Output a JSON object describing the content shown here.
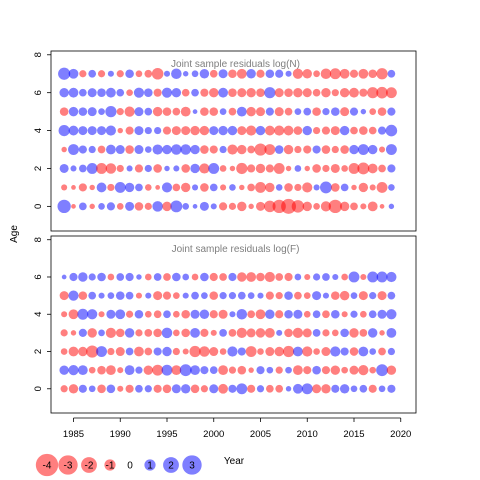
{
  "chart_data": {
    "type": "scatter",
    "subtype": "bubble-residuals",
    "shared_y_label": "Age",
    "shared_x_label": "Year",
    "x_ticks": [
      1985,
      1990,
      1995,
      2000,
      2005,
      2010,
      2015,
      2020
    ],
    "years_range": [
      1984,
      2019
    ],
    "colors": {
      "positive": "#0000FF",
      "negative": "#FF0000",
      "alpha": 0.5
    },
    "size_legend": {
      "values": [
        -4,
        -3,
        -2,
        -1,
        0,
        1,
        2,
        3
      ],
      "labels": [
        "-4",
        "-3",
        "-2",
        "-1",
        "0",
        "1",
        "2",
        "3"
      ]
    },
    "panels": [
      {
        "title": "Joint sample residuals log(N)",
        "ages": [
          0,
          1,
          2,
          3,
          4,
          5,
          6,
          7
        ],
        "y_ticks": [
          0,
          2,
          4,
          6,
          8
        ],
        "ylim": [
          -1.3,
          8.2
        ],
        "residuals": [
          [
            2.4,
            -0.3,
            0.8,
            -0.4,
            0.6,
            0.9,
            -0.6,
            1.1,
            -1.0,
            -0.7,
            1.5,
            -1.2,
            1.9,
            0.6,
            0.3,
            1.1,
            0.5,
            -0.9,
            -0.7,
            -1.2,
            -0.4,
            -1.1,
            -1.8,
            -2.4,
            -3.0,
            -2.1,
            -1.2,
            -0.6,
            -1.4,
            -2.4,
            -1.2,
            -0.8,
            -0.5,
            -1.3,
            -0.3,
            0.4
          ],
          [
            -0.5,
            -0.3,
            -0.9,
            -0.4,
            1.3,
            -0.7,
            1.6,
            1.2,
            0.8,
            -0.6,
            -0.3,
            1.4,
            -0.8,
            -1.2,
            0.5,
            -1.0,
            0.8,
            -0.5,
            0.6,
            -0.4,
            -0.8,
            -1.6,
            -1.2,
            0.6,
            -1.0,
            -0.7,
            -1.4,
            0.5,
            1.9,
            -1.0,
            0.8,
            -0.4,
            -1.2,
            -0.5,
            -1.6,
            0.6
          ],
          [
            1.1,
            0.5,
            0.8,
            1.6,
            -1.6,
            -1.5,
            -0.7,
            0.5,
            -0.9,
            0.7,
            -1.0,
            0.4,
            0.5,
            -1.0,
            1.2,
            -1.4,
            1.6,
            -0.6,
            -0.4,
            -1.7,
            -0.9,
            -1.2,
            -0.9,
            -1.6,
            -0.4,
            0.6,
            -0.4,
            -1.0,
            -0.7,
            -1.1,
            -0.6,
            -1.6,
            -1.9,
            -1.3,
            -0.8,
            0.9
          ],
          [
            -0.4,
            1.6,
            0.9,
            0.7,
            -0.8,
            1.3,
            1.1,
            -1.0,
            1.1,
            0.6,
            1.4,
            1.2,
            1.5,
            1.5,
            1.2,
            -1.0,
            -0.9,
            0.7,
            -1.4,
            -1.2,
            -0.8,
            -2.0,
            -1.6,
            1.0,
            -1.2,
            -0.7,
            -0.9,
            0.9,
            -1.0,
            -0.7,
            -1.0,
            1.2,
            1.6,
            1.2,
            -0.5,
            1.6
          ],
          [
            1.7,
            1.3,
            1.1,
            1.1,
            1.1,
            1.4,
            -0.4,
            -0.9,
            1.1,
            0.7,
            0.7,
            -0.9,
            -1.1,
            -1.1,
            -1.2,
            -1.2,
            1.1,
            1.2,
            1.2,
            -1.1,
            -1.4,
            1.2,
            -1.3,
            -1.4,
            -1.3,
            -1.0,
            1.2,
            -0.7,
            -0.9,
            -1.1,
            1.2,
            -0.8,
            -1.0,
            -0.8,
            0.9,
            1.8
          ],
          [
            -1.0,
            1.2,
            1.0,
            1.1,
            0.6,
            1.7,
            -0.7,
            -1.4,
            1.1,
            0.8,
            -1.2,
            -1.0,
            -0.8,
            -1.3,
            0.3,
            -1.0,
            -1.0,
            0.6,
            -0.8,
            1.3,
            -1.2,
            -1.1,
            0.9,
            -1.1,
            -0.8,
            0.6,
            0.8,
            -1.0,
            0.7,
            1.0,
            -1.1,
            0.9,
            0.4,
            -0.6,
            -1.0,
            0.9
          ],
          [
            1.2,
            1.3,
            0.8,
            1.1,
            1.0,
            1.3,
            0.8,
            -0.6,
            1.4,
            1.0,
            -0.9,
            1.4,
            1.2,
            -0.8,
            0.8,
            -0.9,
            -1.2,
            1.3,
            -1.0,
            -1.1,
            -1.2,
            -1.0,
            1.7,
            -1.1,
            -1.0,
            -1.2,
            -1.1,
            -0.8,
            -1.2,
            -0.7,
            -1.2,
            -1.3,
            -0.9,
            -1.7,
            -1.8,
            -1.6
          ],
          [
            2.0,
            1.3,
            -0.7,
            0.8,
            -0.7,
            0.5,
            -0.7,
            1.0,
            -0.6,
            -0.8,
            -1.8,
            0.5,
            1.5,
            0.4,
            0.6,
            1.2,
            -0.8,
            1.1,
            -1.0,
            -1.3,
            1.2,
            -0.9,
            1.0,
            0.9,
            0.5,
            -1.4,
            -1.2,
            -0.6,
            -1.5,
            -1.6,
            -1.3,
            -0.9,
            -1.3,
            -1.0,
            -1.7,
            0.8
          ]
        ]
      },
      {
        "title": "Joint sample residuals log(F)",
        "ages": [
          0,
          1,
          2,
          3,
          4,
          5,
          6
        ],
        "y_ticks": [
          0,
          2,
          4,
          6,
          8
        ],
        "ylim": [
          -1.3,
          8.2
        ],
        "residuals": [
          [
            -0.7,
            -1.2,
            0.9,
            0.6,
            -1.0,
            1.0,
            -0.5,
            -0.9,
            0.8,
            0.7,
            -0.9,
            -1.0,
            1.1,
            1.2,
            -1.0,
            -0.7,
            1.1,
            -1.3,
            0.9,
            1.6,
            -0.9,
            0.7,
            -0.8,
            -0.8,
            0.4,
            1.3,
            1.6,
            -1.1,
            -1.2,
            0.9,
            1.2,
            0.6,
            0.8,
            -0.9,
            0.6,
            0.9
          ],
          [
            1.2,
            1.4,
            1.3,
            -0.6,
            -1.0,
            -1.3,
            -0.5,
            1.3,
            0.7,
            -1.2,
            -1.6,
            1.6,
            -1.3,
            1.9,
            1.3,
            0.9,
            0.8,
            -1.3,
            -0.7,
            -1.0,
            -0.4,
            0.9,
            0.6,
            -0.7,
            0.6,
            -1.3,
            -0.9,
            1.0,
            -0.9,
            -1.2,
            -0.6,
            -1.1,
            -1.4,
            -0.6,
            1.9,
            -1.2
          ],
          [
            -0.6,
            -1.3,
            -1.2,
            -2.0,
            1.6,
            -0.7,
            -1.1,
            0.8,
            -1.3,
            -0.8,
            0.9,
            1.2,
            -0.7,
            -0.5,
            -1.7,
            -1.5,
            -1.1,
            -0.6,
            1.4,
            0.9,
            -1.6,
            -0.6,
            -1.1,
            -1.2,
            -1.7,
            1.3,
            -1.4,
            -0.6,
            -1.1,
            1.4,
            0.9,
            -1.0,
            1.3,
            0.6,
            -0.8,
            0.7
          ],
          [
            -0.7,
            -0.4,
            0.9,
            -1.2,
            0.6,
            -1.4,
            -1.0,
            1.2,
            -0.7,
            -0.8,
            -1.0,
            1.5,
            -0.6,
            -1.0,
            1.3,
            -0.9,
            -0.5,
            0.8,
            -0.8,
            -1.4,
            -1.1,
            -1.2,
            -1.3,
            0.5,
            -1.0,
            -1.4,
            -1.1,
            0.8,
            -0.7,
            -0.6,
            1.0,
            -1.2,
            -0.8,
            1.2,
            -0.4,
            1.3
          ],
          [
            -0.5,
            -1.3,
            1.6,
            1.4,
            -0.5,
            1.1,
            1.3,
            -0.7,
            1.0,
            -0.6,
            -0.8,
            0.8,
            -0.6,
            -1.0,
            1.1,
            1.2,
            -0.9,
            -1.1,
            0.5,
            1.5,
            -0.8,
            -1.3,
            1.2,
            -0.9,
            1.0,
            1.1,
            -0.6,
            0.8,
            -0.8,
            1.0,
            -0.5,
            0.7,
            -0.6,
            0.8,
            1.1,
            1.4
          ],
          [
            -1.1,
            1.4,
            -1.0,
            0.8,
            0.5,
            0.6,
            1.0,
            0.8,
            -0.5,
            0.5,
            -1.1,
            -0.9,
            -0.6,
            0.5,
            0.8,
            0.6,
            -1.0,
            0.7,
            0.7,
            0.8,
            0.6,
            0.5,
            -0.9,
            -0.7,
            1.0,
            -0.8,
            -0.6,
            1.1,
            0.5,
            -1.0,
            -1.2,
            0.6,
            -1.1,
            0.7,
            -1.1,
            0.8
          ],
          [
            0.3,
            0.9,
            1.2,
            0.7,
            1.0,
            -0.6,
            0.8,
            0.9,
            0.4,
            -0.6,
            0.8,
            -0.8,
            1.0,
            0.6,
            -0.6,
            1.0,
            -0.9,
            -0.8,
            0.9,
            -1.2,
            -1.3,
            -1.0,
            -1.4,
            -0.8,
            -0.9,
            0.6,
            -0.5,
            0.7,
            0.8,
            0.5,
            -0.6,
            1.6,
            -0.5,
            1.6,
            1.6,
            1.4
          ]
        ]
      }
    ]
  }
}
